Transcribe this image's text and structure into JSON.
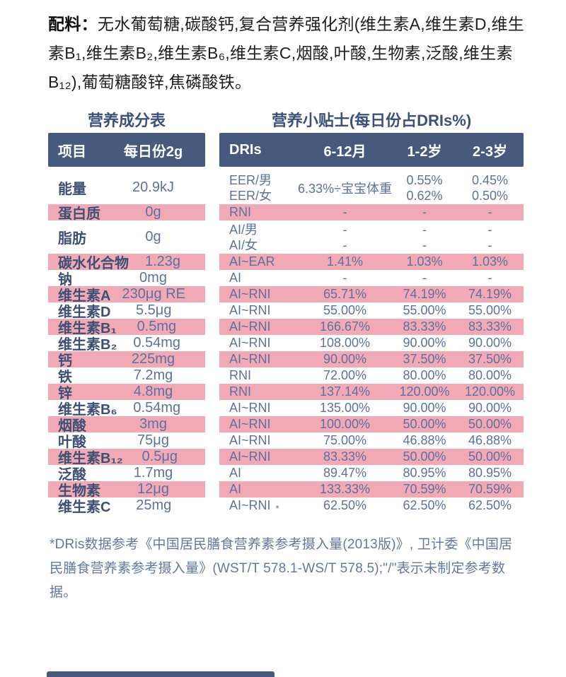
{
  "colors": {
    "navy_header": "#475a7e",
    "pink_row": "#f2a9b6",
    "label_text": "#3d5074",
    "value_text": "#5c71a0",
    "title_text": "#3b5178",
    "footnote_text": "#64779f",
    "ingredients_text": "#1d1d1d"
  },
  "ingredients": {
    "label": "配料：",
    "text": "无水葡萄糖,碳酸钙,复合营养强化剂(维生素A,维生素D,维生素B₁,维生素B₂,维生素B₆,维生素C,烟酸,叶酸,生物素,泛酸,维生素B₁₂),葡萄糖酸锌,焦磷酸铁。"
  },
  "nutrition_table": {
    "title": "营养成分表",
    "columns": [
      "项目",
      "每日份2g"
    ]
  },
  "dris_table": {
    "title": "营养小贴士(每日份占DRIs%)",
    "columns": [
      "DRIs",
      "6-12月",
      "1-2岁",
      "2-3岁"
    ]
  },
  "rows": [
    {
      "pink": false,
      "two": true,
      "item": "能量",
      "amount": "20.9kJ",
      "dris": [
        "EER/男",
        "EER/女"
      ],
      "m6_12": "6.33%÷宝宝体重",
      "y1_2": [
        "0.55%",
        "0.62%"
      ],
      "y2_3": [
        "0.45%",
        "0.50%"
      ]
    },
    {
      "pink": true,
      "two": false,
      "item": "蛋白质",
      "amount": "0g",
      "dris": "RNI",
      "m6_12": "-",
      "y1_2": "-",
      "y2_3": "-"
    },
    {
      "pink": false,
      "two": true,
      "item": "脂肪",
      "amount": "0g",
      "dris": [
        "AI/男",
        "AI/女"
      ],
      "m6_12": [
        "-",
        "-"
      ],
      "y1_2": [
        "-",
        "-"
      ],
      "y2_3": [
        "-",
        "-"
      ]
    },
    {
      "pink": true,
      "two": false,
      "item": "碳水化合物",
      "amount": "1.23g",
      "dris": "AI~EAR",
      "m6_12": "1.41%",
      "y1_2": "1.03%",
      "y2_3": "1.03%"
    },
    {
      "pink": false,
      "two": false,
      "item": "钠",
      "amount": "0mg",
      "dris": "AI",
      "m6_12": "-",
      "y1_2": "-",
      "y2_3": "-"
    },
    {
      "pink": true,
      "two": false,
      "item": "维生素A",
      "amount": "230μg RE",
      "dris": "AI~RNI",
      "m6_12": "65.71%",
      "y1_2": "74.19%",
      "y2_3": "74.19%"
    },
    {
      "pink": false,
      "two": false,
      "item": "维生素D",
      "amount": "5.5μg",
      "dris": "AI~RNI",
      "m6_12": "55.00%",
      "y1_2": "55.00%",
      "y2_3": "55.00%"
    },
    {
      "pink": true,
      "two": false,
      "item": "维生素B₁",
      "amount": "0.5mg",
      "dris": "AI~RNI",
      "m6_12": "166.67%",
      "y1_2": "83.33%",
      "y2_3": "83.33%"
    },
    {
      "pink": false,
      "two": false,
      "item": "维生素B₂",
      "amount": "0.54mg",
      "dris": "AI~RNI",
      "m6_12": "108.00%",
      "y1_2": "90.00%",
      "y2_3": "90.00%"
    },
    {
      "pink": true,
      "two": false,
      "item": "钙",
      "amount": "225mg",
      "dris": "AI~RNI",
      "m6_12": "90.00%",
      "y1_2": "37.50%",
      "y2_3": "37.50%"
    },
    {
      "pink": false,
      "two": false,
      "item": "铁",
      "amount": "7.2mg",
      "dris": "RNI",
      "m6_12": "72.00%",
      "y1_2": "80.00%",
      "y2_3": "80.00%"
    },
    {
      "pink": true,
      "two": false,
      "item": "锌",
      "amount": "4.8mg",
      "dris": "RNI",
      "m6_12": "137.14%",
      "y1_2": "120.00%",
      "y2_3": "120.00%"
    },
    {
      "pink": false,
      "two": false,
      "item": "维生素B₆",
      "amount": "0.54mg",
      "dris": "AI~RNI",
      "m6_12": "135.00%",
      "y1_2": "90.00%",
      "y2_3": "90.00%"
    },
    {
      "pink": true,
      "two": false,
      "item": "烟酸",
      "amount": "3mg",
      "dris": "AI~RNI",
      "m6_12": "100.00%",
      "y1_2": "50.00%",
      "y2_3": "50.00%"
    },
    {
      "pink": false,
      "two": false,
      "item": "叶酸",
      "amount": "75μg",
      "dris": "AI~RNI",
      "m6_12": "75.00%",
      "y1_2": "46.88%",
      "y2_3": "46.88%"
    },
    {
      "pink": true,
      "two": false,
      "item": "维生素B₁₂",
      "amount": "0.5μg",
      "dris": "AI~RNI",
      "m6_12": "83.33%",
      "y1_2": "50.00%",
      "y2_3": "50.00%"
    },
    {
      "pink": false,
      "two": false,
      "item": "泛酸",
      "amount": "1.7mg",
      "dris": "AI",
      "m6_12": "89.47%",
      "y1_2": "80.95%",
      "y2_3": "80.95%"
    },
    {
      "pink": true,
      "two": false,
      "item": "生物素",
      "amount": "12μg",
      "dris": "AI",
      "m6_12": "133.33%",
      "y1_2": "70.59%",
      "y2_3": "70.59%"
    },
    {
      "pink": false,
      "two": false,
      "item": "维生素C",
      "amount": "25mg",
      "dris": "AI~RNI",
      "star": "*",
      "m6_12": "62.50%",
      "y1_2": "62.50%",
      "y2_3": "62.50%"
    }
  ],
  "footnote": {
    "text": "*DRis数据参考《中国居民膳食营养素参考摄入量(2013版)》, 卫计委《中国居民膳食营养素参考摄入量》(WST/T 578.1-WS/T 578.5);\"/\"表示未制定参考数据。"
  }
}
